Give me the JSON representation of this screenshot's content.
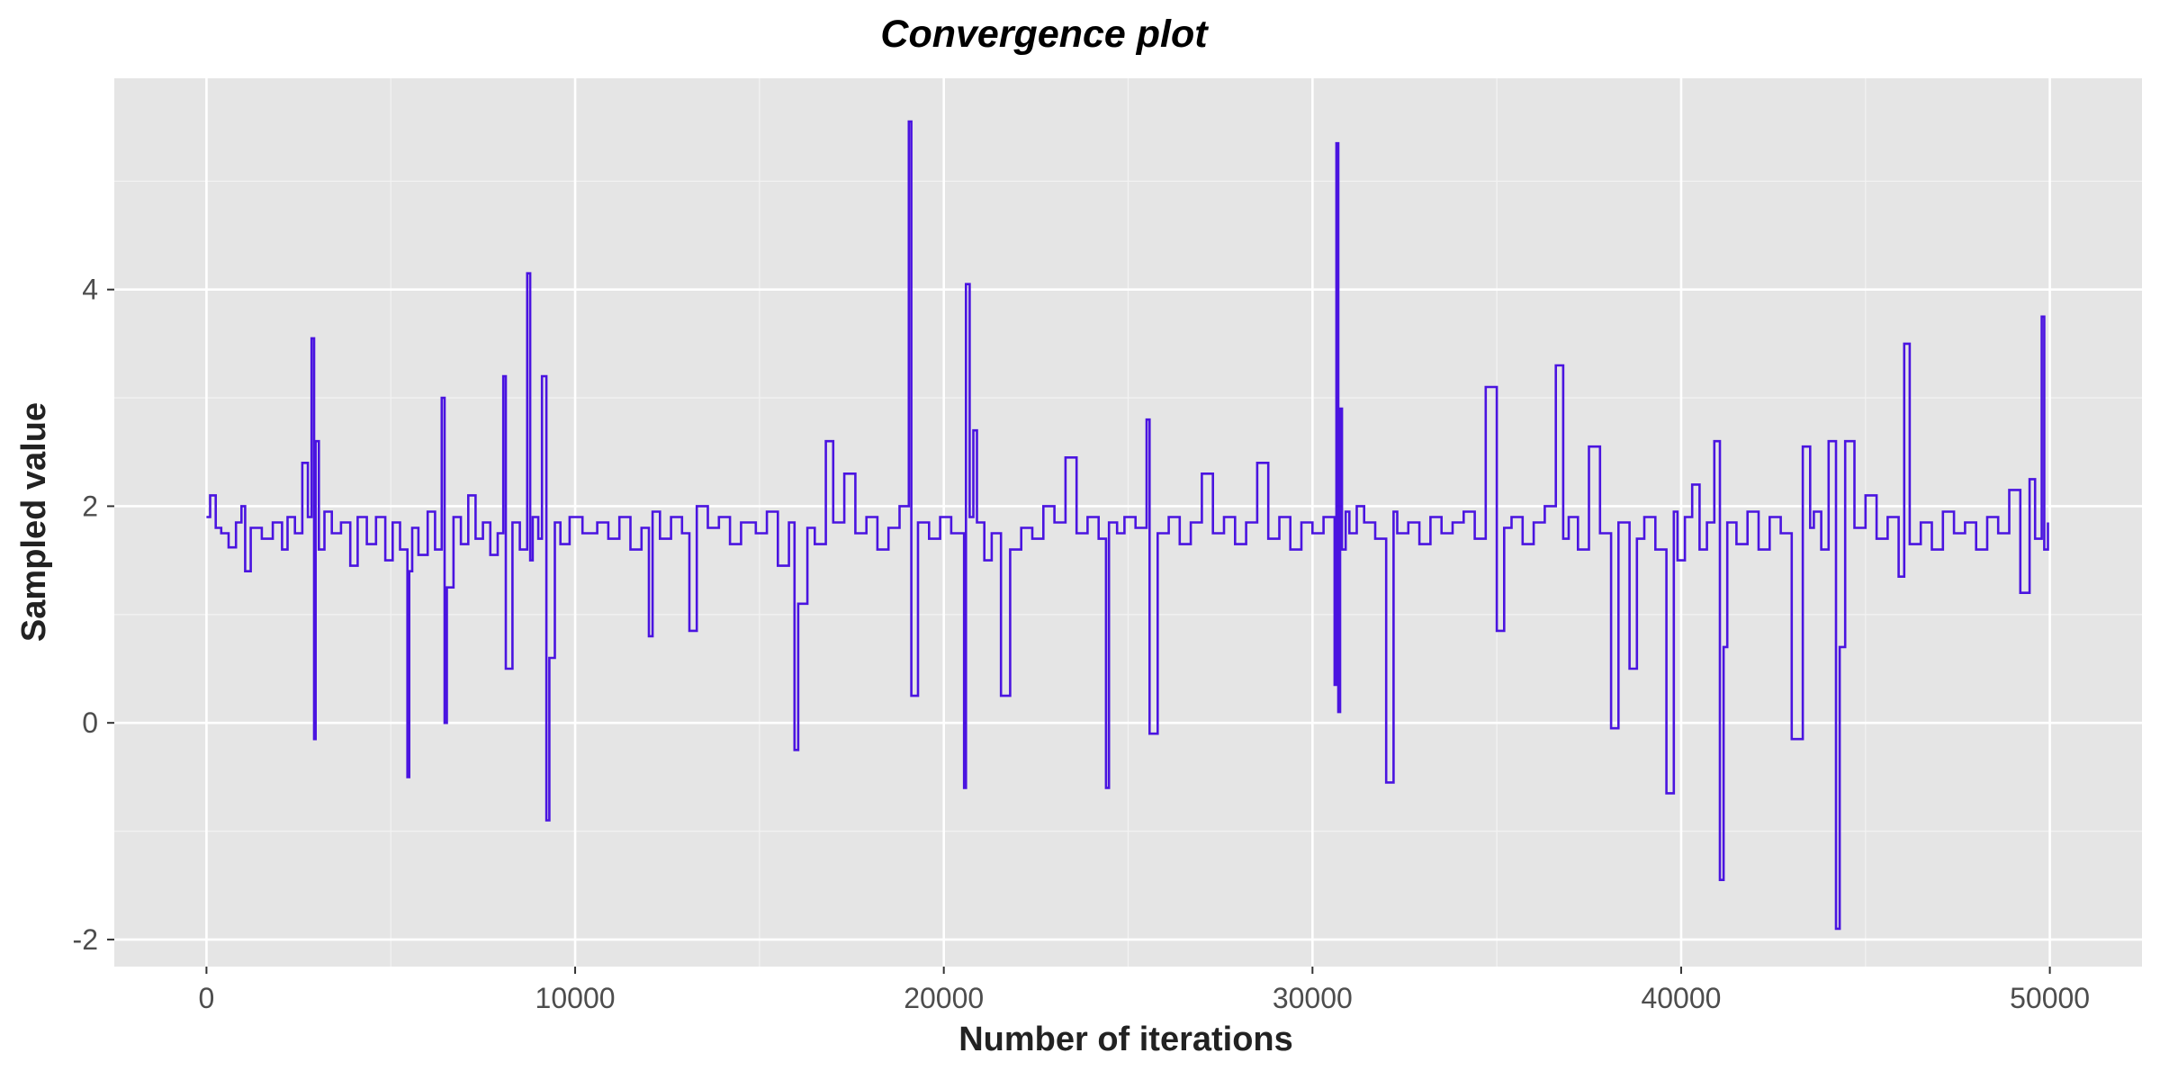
{
  "chart_data": {
    "type": "line",
    "title": "Convergence plot",
    "xlabel": "Number of iterations",
    "ylabel": "Sampled value",
    "xlim": [
      -2500,
      52500
    ],
    "ylim": [
      -2.25,
      5.95
    ],
    "x_ticks": [
      0,
      10000,
      20000,
      30000,
      40000,
      50000
    ],
    "x_tick_labels": [
      "0",
      "10000",
      "20000",
      "30000",
      "40000",
      "50000"
    ],
    "y_ticks": [
      -2,
      0,
      2,
      4
    ],
    "y_tick_labels": [
      "-2",
      "0",
      "2",
      "4"
    ],
    "grid": true,
    "panel_background": "#e5e5e5",
    "grid_color": "#ffffff",
    "line_color": "#4a14e0",
    "step": "post",
    "series": [
      {
        "x": [
          0,
          100,
          250,
          400,
          600,
          800,
          950,
          1050,
          1200,
          1500,
          1800,
          2050,
          2200,
          2400,
          2600,
          2750,
          2850,
          2920,
          2960,
          3050,
          3200,
          3400,
          3650,
          3900,
          4100,
          4350,
          4600,
          4850,
          5050,
          5250,
          5450,
          5500,
          5580,
          5750,
          6000,
          6200,
          6380,
          6460,
          6520,
          6700,
          6900,
          7100,
          7300,
          7500,
          7700,
          7900,
          8050,
          8120,
          8300,
          8500,
          8700,
          8780,
          8850,
          9000,
          9100,
          9220,
          9300,
          9450,
          9600,
          9850,
          10200,
          10600,
          10900,
          11200,
          11500,
          11800,
          12000,
          12100,
          12300,
          12600,
          12900,
          13100,
          13300,
          13600,
          13900,
          14200,
          14500,
          14900,
          15200,
          15500,
          15800,
          15950,
          16050,
          16300,
          16500,
          16800,
          17000,
          17300,
          17600,
          17900,
          18200,
          18500,
          18800,
          19050,
          19120,
          19300,
          19600,
          19900,
          20200,
          20550,
          20600,
          20700,
          20800,
          20900,
          21100,
          21300,
          21550,
          21800,
          22100,
          22400,
          22700,
          23000,
          23300,
          23600,
          23900,
          24200,
          24400,
          24480,
          24700,
          24900,
          25200,
          25500,
          25580,
          25800,
          26100,
          26400,
          26700,
          27000,
          27300,
          27600,
          27900,
          28200,
          28500,
          28800,
          29100,
          29400,
          29700,
          30000,
          30300,
          30600,
          30650,
          30700,
          30750,
          30800,
          30900,
          31000,
          31200,
          31400,
          31700,
          32000,
          32200,
          32300,
          32600,
          32900,
          33200,
          33500,
          33800,
          34100,
          34400,
          34700,
          35000,
          35200,
          35400,
          35700,
          36000,
          36300,
          36600,
          36800,
          36950,
          37200,
          37500,
          37800,
          38100,
          38300,
          38600,
          38800,
          39000,
          39300,
          39600,
          39800,
          39900,
          40100,
          40300,
          40500,
          40700,
          40900,
          41050,
          41150,
          41250,
          41500,
          41800,
          42100,
          42400,
          42700,
          43000,
          43300,
          43500,
          43600,
          43800,
          44000,
          44200,
          44300,
          44450,
          44700,
          45000,
          45300,
          45600,
          45900,
          46050,
          46200,
          46500,
          46800,
          47100,
          47400,
          47700,
          48000,
          48300,
          48600,
          48900,
          49200,
          49450,
          49600,
          49780,
          49850,
          49950
        ],
        "y": [
          1.9,
          2.1,
          1.8,
          1.75,
          1.62,
          1.85,
          2.0,
          1.4,
          1.8,
          1.7,
          1.85,
          1.6,
          1.9,
          1.75,
          2.4,
          1.9,
          3.55,
          -0.15,
          2.6,
          1.6,
          1.95,
          1.75,
          1.85,
          1.45,
          1.9,
          1.65,
          1.9,
          1.5,
          1.85,
          1.6,
          -0.5,
          1.4,
          1.8,
          1.55,
          1.95,
          1.6,
          3.0,
          0.0,
          1.25,
          1.9,
          1.65,
          2.1,
          1.7,
          1.85,
          1.55,
          1.75,
          3.2,
          0.5,
          1.85,
          1.6,
          4.15,
          1.5,
          1.9,
          1.7,
          3.2,
          -0.9,
          0.6,
          1.85,
          1.65,
          1.9,
          1.75,
          1.85,
          1.7,
          1.9,
          1.6,
          1.8,
          0.8,
          1.95,
          1.7,
          1.9,
          1.75,
          0.85,
          2.0,
          1.8,
          1.9,
          1.65,
          1.85,
          1.75,
          1.95,
          1.45,
          1.85,
          -0.25,
          1.1,
          1.8,
          1.65,
          2.6,
          1.85,
          2.3,
          1.75,
          1.9,
          1.6,
          1.8,
          2.0,
          5.55,
          0.25,
          1.85,
          1.7,
          1.9,
          1.75,
          -0.6,
          4.05,
          1.9,
          2.7,
          1.85,
          1.5,
          1.75,
          0.25,
          1.6,
          1.8,
          1.7,
          2.0,
          1.85,
          2.45,
          1.75,
          1.9,
          1.7,
          -0.6,
          1.85,
          1.75,
          1.9,
          1.8,
          2.8,
          -0.1,
          1.75,
          1.9,
          1.65,
          1.85,
          2.3,
          1.75,
          1.9,
          1.65,
          1.85,
          2.4,
          1.7,
          1.9,
          1.6,
          1.85,
          1.75,
          1.9,
          0.35,
          5.35,
          0.1,
          2.9,
          1.6,
          1.95,
          1.75,
          2.0,
          1.85,
          1.7,
          -0.55,
          1.95,
          1.75,
          1.85,
          1.65,
          1.9,
          1.75,
          1.85,
          1.95,
          1.7,
          3.1,
          0.85,
          1.8,
          1.9,
          1.65,
          1.85,
          2.0,
          3.3,
          1.7,
          1.9,
          1.6,
          2.55,
          1.75,
          -0.05,
          1.85,
          0.5,
          1.7,
          1.9,
          1.6,
          -0.65,
          1.95,
          1.5,
          1.9,
          2.2,
          1.6,
          1.85,
          2.6,
          -1.45,
          0.7,
          1.85,
          1.65,
          1.95,
          1.6,
          1.9,
          1.75,
          -0.15,
          2.55,
          1.8,
          1.95,
          1.6,
          2.6,
          -1.9,
          0.7,
          2.6,
          1.8,
          2.1,
          1.7,
          1.9,
          1.35,
          3.5,
          1.65,
          1.85,
          1.6,
          1.95,
          1.75,
          1.85,
          1.6,
          1.9,
          1.75,
          2.15,
          1.2,
          2.25,
          1.7,
          3.75,
          1.6,
          1.85
        ]
      }
    ]
  }
}
